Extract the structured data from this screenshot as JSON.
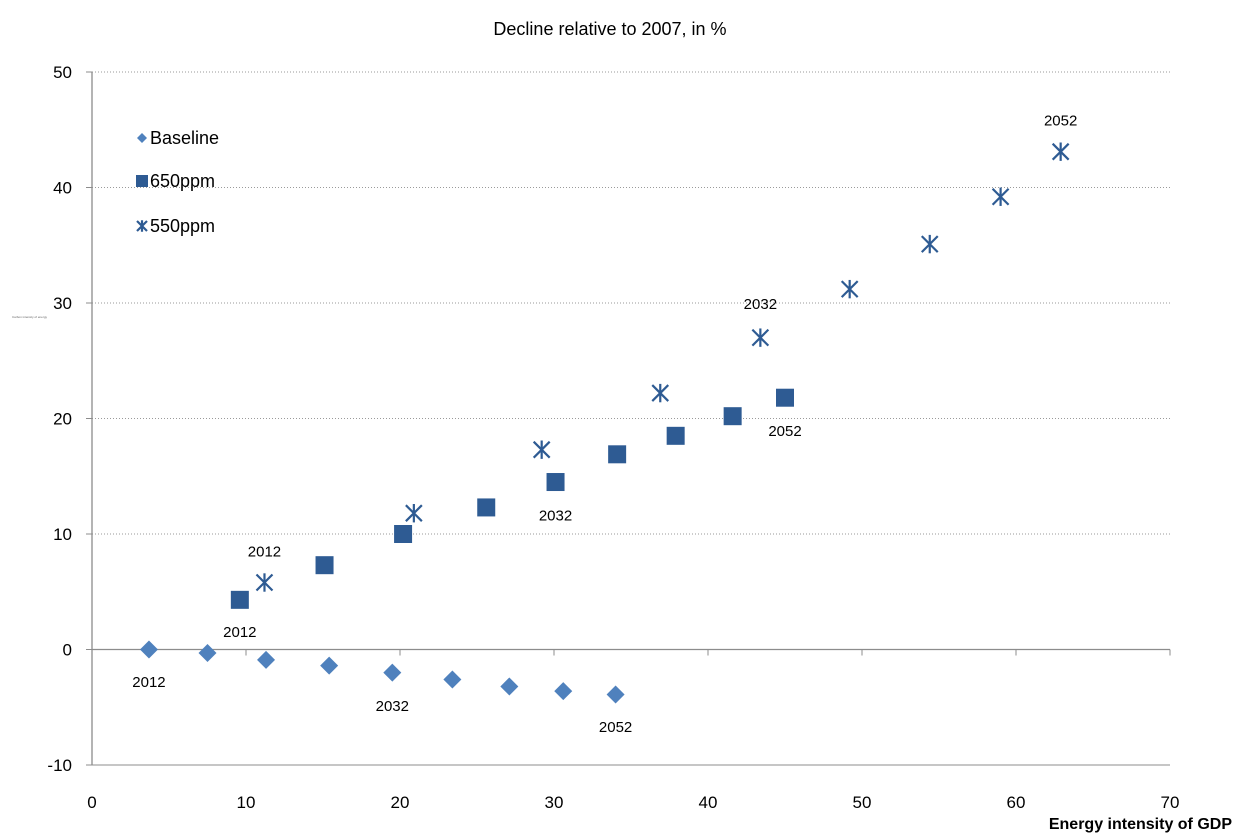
{
  "chart_data": {
    "type": "scatter",
    "subtitle": "Decline relative to 2007, in %",
    "xlabel": "Energy intensity of GDP",
    "ylabel": "Carbon intensity of energy",
    "xlim": [
      0,
      70
    ],
    "ylim": [
      -10,
      50
    ],
    "x_ticks": [
      0,
      10,
      20,
      30,
      40,
      50,
      60,
      70
    ],
    "y_ticks": [
      -10,
      0,
      10,
      20,
      30,
      40,
      50
    ],
    "grid": "horizontal dotted",
    "legend_position": "top-left",
    "series": [
      {
        "name": "Baseline",
        "marker": "diamond",
        "color": "#4f81bd",
        "points": [
          {
            "x": 3.7,
            "y": 0.0
          },
          {
            "x": 7.5,
            "y": -0.3
          },
          {
            "x": 11.3,
            "y": -0.9
          },
          {
            "x": 15.4,
            "y": -1.4
          },
          {
            "x": 19.5,
            "y": -2.0
          },
          {
            "x": 23.4,
            "y": -2.6
          },
          {
            "x": 27.1,
            "y": -3.2
          },
          {
            "x": 30.6,
            "y": -3.6
          },
          {
            "x": 34.0,
            "y": -3.9
          }
        ]
      },
      {
        "name": "650ppm",
        "marker": "square",
        "color": "#2e5b93",
        "points": [
          {
            "x": 9.6,
            "y": 4.3
          },
          {
            "x": 15.1,
            "y": 7.3
          },
          {
            "x": 20.2,
            "y": 10.0
          },
          {
            "x": 25.6,
            "y": 12.3
          },
          {
            "x": 30.1,
            "y": 14.5
          },
          {
            "x": 34.1,
            "y": 16.9
          },
          {
            "x": 37.9,
            "y": 18.5
          },
          {
            "x": 41.6,
            "y": 20.2
          },
          {
            "x": 45.0,
            "y": 21.8
          }
        ]
      },
      {
        "name": "550ppm",
        "marker": "star",
        "color": "#2e5b93",
        "points": [
          {
            "x": 11.2,
            "y": 5.8
          },
          {
            "x": 20.9,
            "y": 11.8
          },
          {
            "x": 29.2,
            "y": 17.3
          },
          {
            "x": 36.9,
            "y": 22.2
          },
          {
            "x": 43.4,
            "y": 27.0
          },
          {
            "x": 49.2,
            "y": 31.2
          },
          {
            "x": 54.4,
            "y": 35.1
          },
          {
            "x": 59.0,
            "y": 39.2
          },
          {
            "x": 62.9,
            "y": 43.1
          }
        ]
      }
    ],
    "annotations": [
      {
        "text": "2012",
        "x": 3.7,
        "y": -2.8
      },
      {
        "text": "2032",
        "x": 19.5,
        "y": -4.9
      },
      {
        "text": "2052",
        "x": 34.0,
        "y": -6.7
      },
      {
        "text": "2012",
        "x": 9.6,
        "y": 1.5
      },
      {
        "text": "2032",
        "x": 30.1,
        "y": 11.6
      },
      {
        "text": "2052",
        "x": 45.0,
        "y": 18.9
      },
      {
        "text": "2012",
        "x": 11.2,
        "y": 8.5
      },
      {
        "text": "2032",
        "x": 43.4,
        "y": 29.9
      },
      {
        "text": "2052",
        "x": 62.9,
        "y": 45.8
      }
    ]
  }
}
